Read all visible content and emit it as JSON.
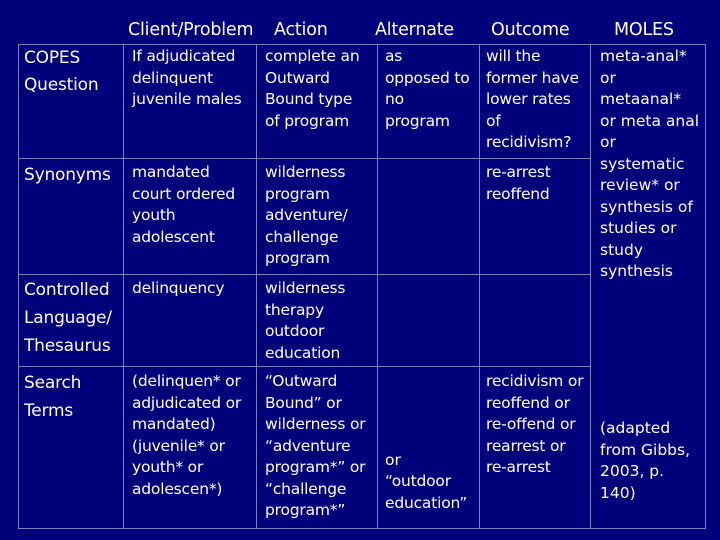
{
  "header": {
    "col_client": "Client/Problem",
    "col_action": "Action",
    "col_alternate": "Alternate",
    "col_outcome": "Outcome",
    "col_moles": "MOLES"
  },
  "rows": {
    "copes": {
      "label": "COPES\nQuestion",
      "client": "If adjudicated\ndelinquent\njuvenile males",
      "action": "complete an\nOutward\nBound type\nof program",
      "alternate": "as\nopposed to\nno\nprogram",
      "outcome": "will the\nformer have\nlower rates\nof\nrecidivism?"
    },
    "synonyms": {
      "label": "Synonyms",
      "client": "mandated\ncourt ordered\nyouth\nadolescent",
      "action": "wilderness\nprogram\nadventure/\nchallenge\nprogram",
      "outcome": "re-arrest\nreoffend"
    },
    "controlled": {
      "label": "Controlled\nLanguage/\nThesaurus",
      "client": "delinquency",
      "action": "wilderness\ntherapy\noutdoor\neducation"
    },
    "search": {
      "label": "Search\nTerms",
      "client": "(delinquen* or\nadjudicated or\nmandated)\n(juvenile* or\nyouth* or\nadolescen*)",
      "action": "“Outward\nBound” or\nwilderness or\n“adventure\nprogram*” or\n“challenge\nprogram*”",
      "alternate_or": "or",
      "alternate": "“outdoor\neducation”",
      "outcome": "recidivism or\nreoffend or\nre-offend or\nrearrest or\nre-arrest"
    }
  },
  "moles": {
    "terms": "meta-anal*\nor\nmetaanal*\nor meta anal\nor\nsystematic\nreview* or\nsynthesis of\nstudies or\nstudy\nsynthesis",
    "citation": "(adapted\nfrom Gibbs,\n2003, p.\n140)"
  }
}
